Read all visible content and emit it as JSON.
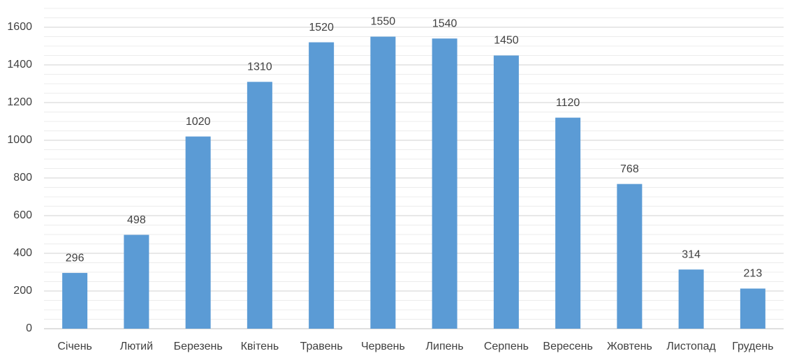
{
  "chart_data": {
    "type": "bar",
    "categories": [
      "Січень",
      "Лютий",
      "Березень",
      "Квітень",
      "Травень",
      "Червень",
      "Липень",
      "Серпень",
      "Вересень",
      "Жовтень",
      "Листопад",
      "Грудень"
    ],
    "values": [
      296,
      498,
      1020,
      1310,
      1520,
      1550,
      1540,
      1450,
      1120,
      768,
      314,
      213
    ],
    "color": "#5b9bd5",
    "ylim": [
      0,
      1700
    ],
    "yticks": [
      0,
      200,
      400,
      600,
      800,
      1000,
      1200,
      1400,
      1600
    ],
    "grid": true,
    "minor_grid_step": 50
  }
}
